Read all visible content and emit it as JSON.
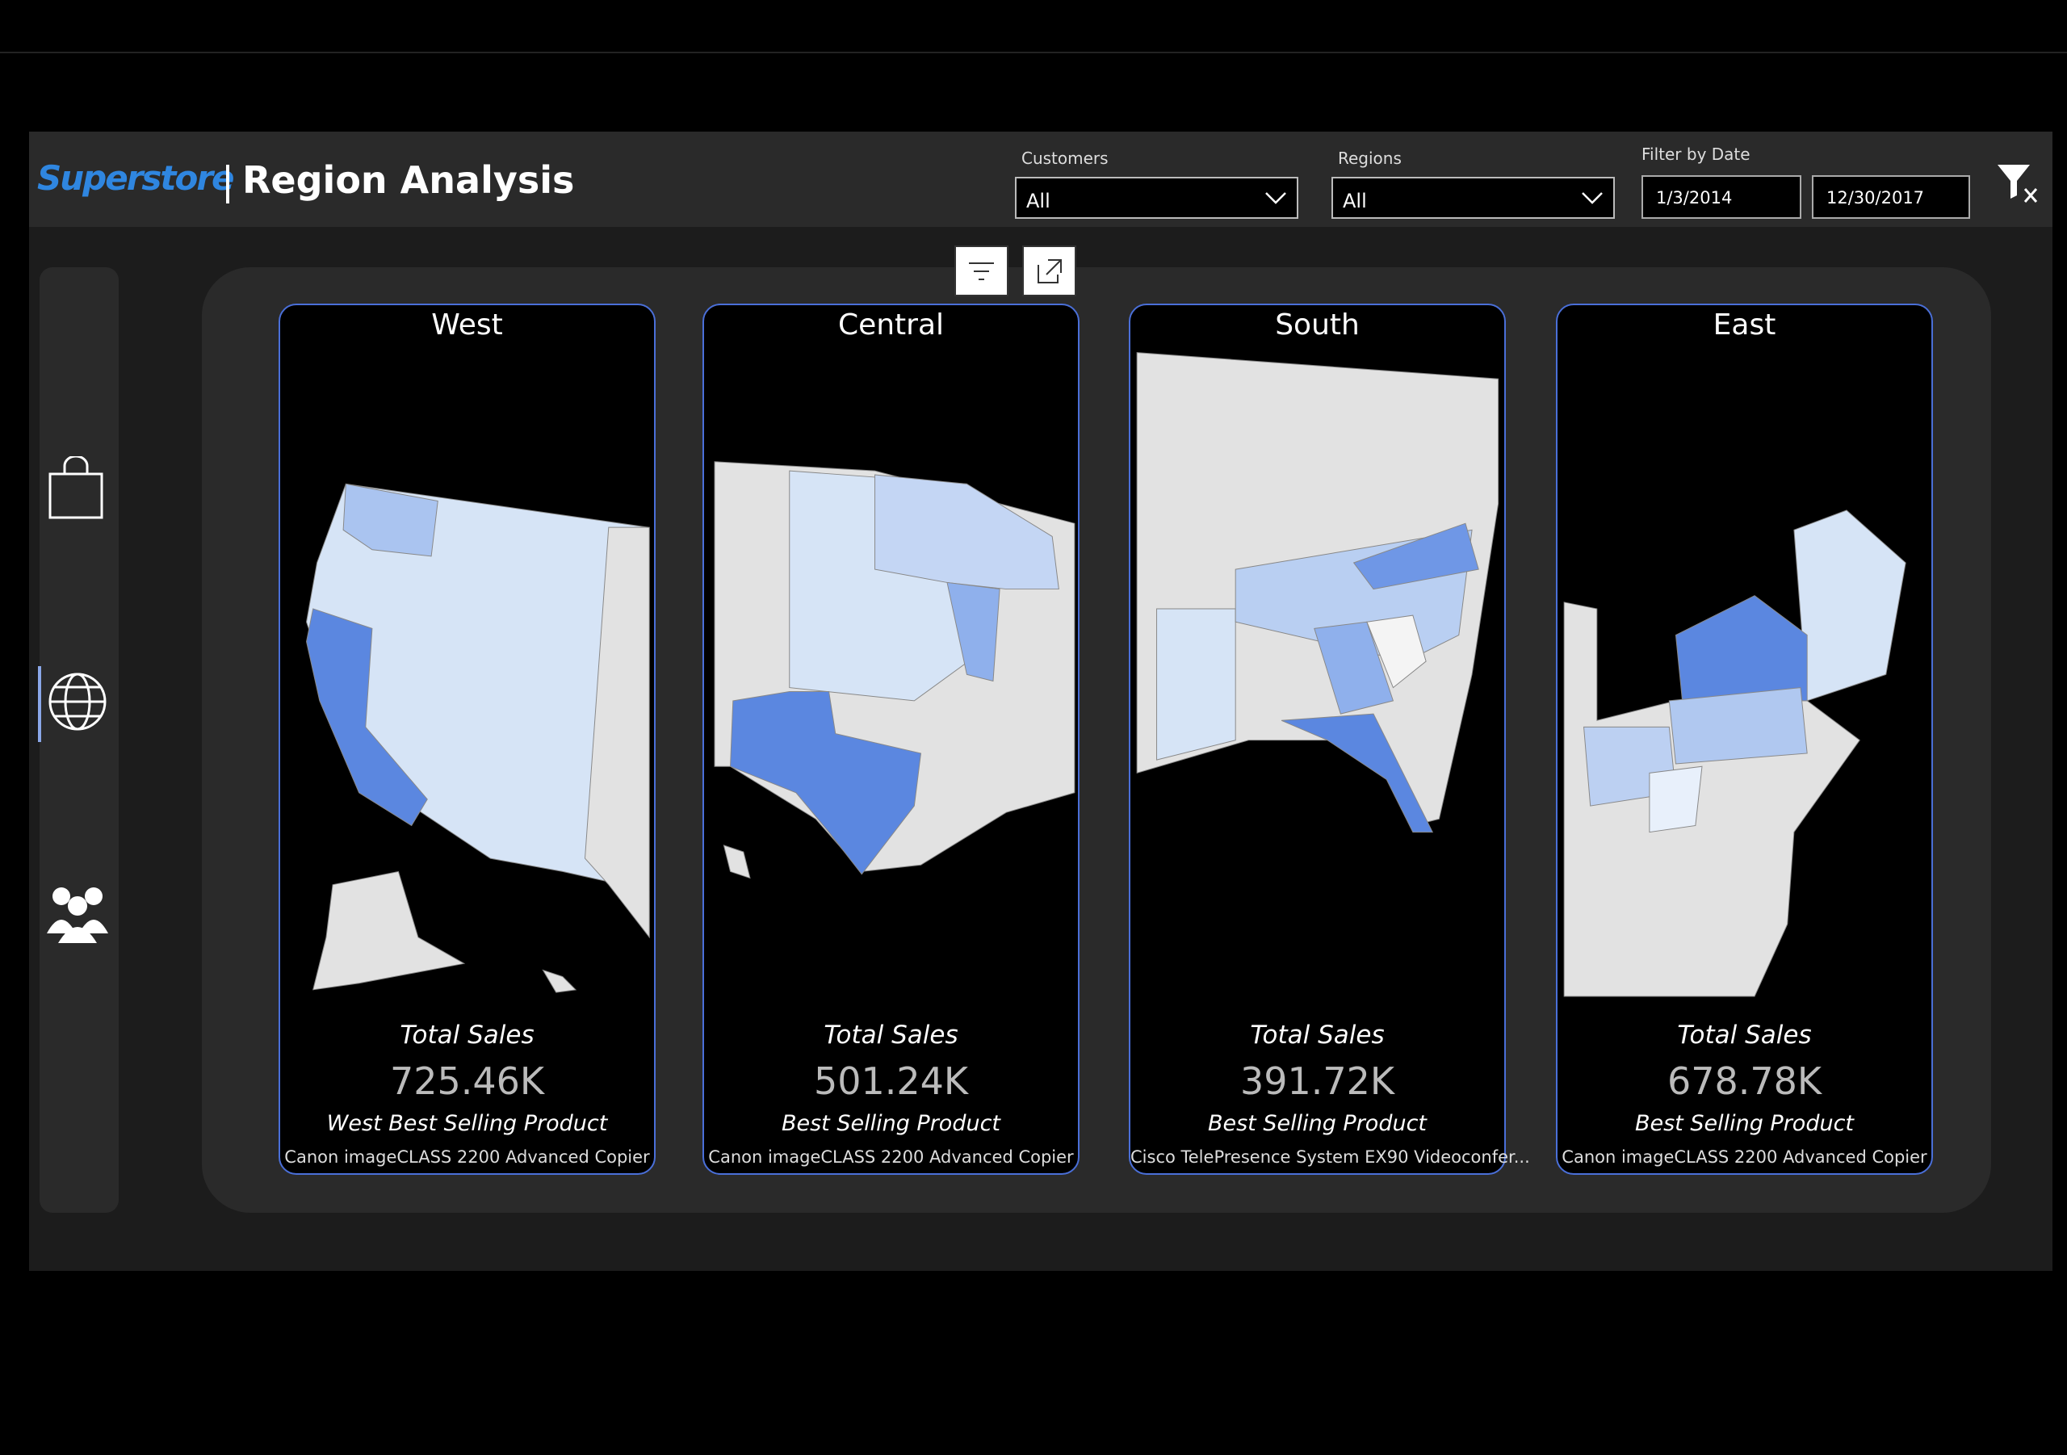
{
  "header": {
    "logo": "Superstore",
    "title": "Region Analysis"
  },
  "filters": {
    "customers": {
      "label": "Customers",
      "value": "All"
    },
    "regions": {
      "label": "Regions",
      "value": "All"
    },
    "date": {
      "label": "Filter by Date",
      "start": "1/3/2014",
      "end": "12/30/2017"
    }
  },
  "cards": [
    {
      "region": "West",
      "metric_label": "Total Sales",
      "metric_value": "725.46K",
      "product_label": "West Best Selling Product",
      "product": "Canon imageCLASS 2200 Advanced Copier"
    },
    {
      "region": "Central",
      "metric_label": "Total Sales",
      "metric_value": "501.24K",
      "product_label": "Best Selling Product",
      "product": "Canon imageCLASS 2200 Advanced Copier"
    },
    {
      "region": "South",
      "metric_label": "Total Sales",
      "metric_value": "391.72K",
      "product_label": "Best Selling Product",
      "product": "Cisco TelePresence System EX90 Videoconfer..."
    },
    {
      "region": "East",
      "metric_label": "Total Sales",
      "metric_value": "678.78K",
      "product_label": "Best Selling Product",
      "product": "Canon imageCLASS 2200 Advanced Copier"
    }
  ]
}
